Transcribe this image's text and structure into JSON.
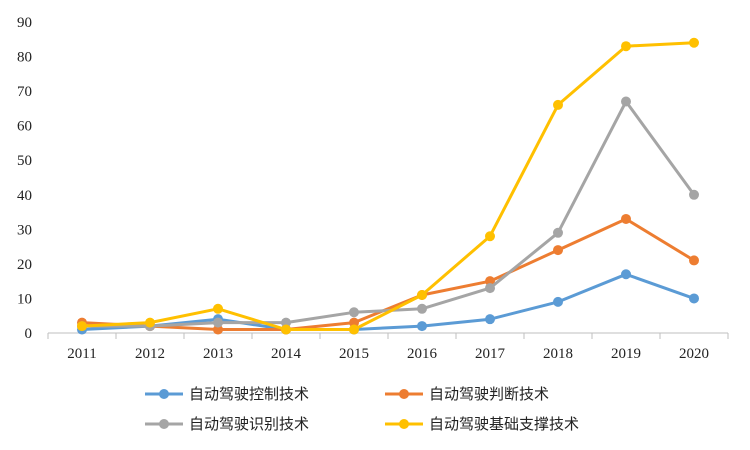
{
  "chart_data": {
    "type": "line",
    "title": "",
    "xlabel": "",
    "ylabel": "",
    "categories": [
      "2011",
      "2012",
      "2013",
      "2014",
      "2015",
      "2016",
      "2017",
      "2018",
      "2019",
      "2020"
    ],
    "ylim": [
      0,
      90
    ],
    "yticks": [
      0,
      10,
      20,
      30,
      40,
      50,
      60,
      70,
      80,
      90
    ],
    "grid": false,
    "legend_position": "bottom",
    "series": [
      {
        "name": "自动驾驶控制技术",
        "color": "#5B9BD5",
        "values": [
          1,
          2,
          4,
          1,
          1,
          2,
          4,
          9,
          17,
          10
        ]
      },
      {
        "name": "自动驾驶判断技术",
        "color": "#ED7D31",
        "values": [
          3,
          2,
          1,
          1,
          3,
          11,
          15,
          24,
          33,
          21
        ]
      },
      {
        "name": "自动驾驶识别技术",
        "color": "#A5A5A5",
        "values": [
          2,
          2,
          3,
          3,
          6,
          7,
          13,
          29,
          67,
          40
        ]
      },
      {
        "name": "自动驾驶基础支撑技术",
        "color": "#FFC000",
        "values": [
          2,
          3,
          7,
          1,
          1,
          11,
          28,
          66,
          83,
          84
        ]
      }
    ]
  }
}
